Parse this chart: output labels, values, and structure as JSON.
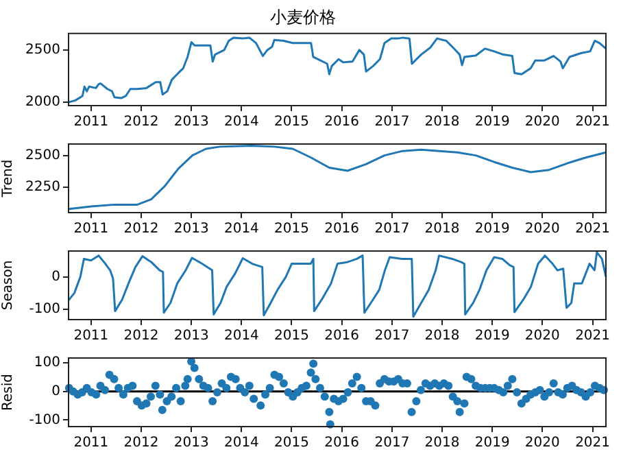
{
  "chart_data": [
    {
      "type": "line",
      "title": "小麦价格",
      "color": "#1f77b4",
      "grid": false,
      "legend": false,
      "xlim": [
        "2010-07-21",
        "2021-04-08"
      ],
      "xticks": [
        "2011",
        "2012",
        "2013",
        "2014",
        "2015",
        "2016",
        "2017",
        "2018",
        "2019",
        "2020",
        "2021"
      ],
      "ylim": [
        1968,
        2658
      ],
      "yticks": [
        2000,
        2500
      ],
      "x": [
        "2010-07-21",
        "2010-09-09",
        "2010-10-30",
        "2010-11-14",
        "2010-12-01",
        "2010-12-18",
        "2011-02-06",
        "2011-02-23",
        "2011-03-11",
        "2011-04-30",
        "2011-06-03",
        "2011-06-20",
        "2011-08-08",
        "2011-09-11",
        "2011-10-14",
        "2011-12-04",
        "2012-02-08",
        "2012-04-16",
        "2012-05-19",
        "2012-06-05",
        "2012-07-09",
        "2012-08-11",
        "2012-09-28",
        "2012-11-02",
        "2012-12-04",
        "2013-01-01",
        "2013-01-24",
        "2013-03-14",
        "2013-05-19",
        "2013-06-05",
        "2013-06-22",
        "2013-08-28",
        "2013-09-30",
        "2013-11-03",
        "2014-01-08",
        "2014-02-27",
        "2014-04-17",
        "2014-06-05",
        "2014-07-08",
        "2014-08-11",
        "2014-08-28",
        "2014-11-04",
        "2015-01-09",
        "2015-03-17",
        "2015-05-22",
        "2015-06-07",
        "2015-07-12",
        "2015-09-17",
        "2015-10-02",
        "2015-10-20",
        "2015-12-09",
        "2016-01-12",
        "2016-03-19",
        "2016-05-08",
        "2016-06-10",
        "2016-06-26",
        "2016-08-16",
        "2016-10-05",
        "2016-11-07",
        "2016-12-27",
        "2017-02-14",
        "2017-03-19",
        "2017-05-08",
        "2017-05-26",
        "2017-08-01",
        "2017-10-06",
        "2017-11-25",
        "2018-01-31",
        "2018-03-22",
        "2018-05-09",
        "2018-05-26",
        "2018-06-13",
        "2018-09-03",
        "2018-11-09",
        "2019-01-15",
        "2019-03-22",
        "2019-05-27",
        "2019-06-12",
        "2019-08-03",
        "2019-10-08",
        "2019-11-10",
        "2020-01-16",
        "2020-03-23",
        "2020-05-12",
        "2020-05-29",
        "2020-07-17",
        "2020-10-08",
        "2020-12-14",
        "2021-01-17",
        "2021-02-21",
        "2021-04-08"
      ],
      "values": [
        2000,
        2018,
        2060,
        2150,
        2105,
        2150,
        2136,
        2170,
        2180,
        2127,
        2105,
        2048,
        2040,
        2060,
        2127,
        2127,
        2136,
        2193,
        2193,
        2075,
        2105,
        2215,
        2280,
        2325,
        2434,
        2575,
        2544,
        2544,
        2544,
        2390,
        2456,
        2500,
        2588,
        2618,
        2610,
        2618,
        2566,
        2443,
        2500,
        2530,
        2596,
        2588,
        2566,
        2566,
        2566,
        2434,
        2412,
        2368,
        2268,
        2346,
        2412,
        2382,
        2390,
        2500,
        2456,
        2294,
        2346,
        2412,
        2566,
        2610,
        2610,
        2618,
        2610,
        2368,
        2456,
        2522,
        2610,
        2588,
        2522,
        2456,
        2355,
        2434,
        2447,
        2513,
        2487,
        2456,
        2443,
        2280,
        2268,
        2325,
        2400,
        2400,
        2443,
        2390,
        2325,
        2434,
        2470,
        2487,
        2588,
        2566,
        2513
      ]
    },
    {
      "type": "line",
      "ylabel": "Trend",
      "color": "#1f77b4",
      "grid": false,
      "legend": false,
      "xlim": [
        "2010-07-21",
        "2021-04-08"
      ],
      "xticks": [
        "2011",
        "2012",
        "2013",
        "2014",
        "2015",
        "2016",
        "2017",
        "2018",
        "2019",
        "2020",
        "2021"
      ],
      "ylim": [
        2048,
        2590
      ],
      "yticks": [
        2250,
        2500
      ],
      "x": [
        "2010-07-21",
        "2011-01-01",
        "2011-06-20",
        "2011-12-04",
        "2012-03-14",
        "2012-06-21",
        "2012-09-28",
        "2013-01-08",
        "2013-04-17",
        "2013-07-27",
        "2014-03-15",
        "2014-08-28",
        "2015-01-09",
        "2015-05-22",
        "2015-10-02",
        "2016-02-13",
        "2016-06-26",
        "2016-11-07",
        "2017-03-19",
        "2017-08-01",
        "2017-12-12",
        "2018-04-24",
        "2018-09-03",
        "2019-01-15",
        "2019-05-27",
        "2019-10-08",
        "2020-02-19",
        "2020-07-01",
        "2020-11-12",
        "2021-04-08"
      ],
      "values": [
        2077,
        2097,
        2111,
        2111,
        2153,
        2257,
        2396,
        2500,
        2552,
        2569,
        2576,
        2569,
        2552,
        2483,
        2403,
        2379,
        2431,
        2500,
        2535,
        2545,
        2535,
        2524,
        2500,
        2448,
        2403,
        2368,
        2386,
        2438,
        2483,
        2524
      ]
    },
    {
      "type": "line",
      "ylabel": "Season",
      "color": "#1f77b4",
      "grid": false,
      "legend": false,
      "xlim": [
        "2010-07-21",
        "2021-04-08"
      ],
      "xticks": [
        "2011",
        "2012",
        "2013",
        "2014",
        "2015",
        "2016",
        "2017",
        "2018",
        "2019",
        "2020",
        "2021"
      ],
      "ylim": [
        -131,
        79
      ],
      "yticks": [
        -100,
        0
      ],
      "x": [
        "2010-07-21",
        "2010-09-01",
        "2010-10-15",
        "2010-11-10",
        "2011-01-01",
        "2011-02-25",
        "2011-04-15",
        "2011-05-20",
        "2011-06-10",
        "2011-06-25",
        "2011-08-15",
        "2011-10-01",
        "2011-11-20",
        "2012-01-10",
        "2012-03-15",
        "2012-05-15",
        "2012-06-08",
        "2012-06-14",
        "2012-08-01",
        "2012-09-20",
        "2012-11-20",
        "2013-01-05",
        "2013-03-20",
        "2013-06-01",
        "2013-06-12",
        "2013-08-01",
        "2013-09-15",
        "2013-11-15",
        "2014-01-10",
        "2014-03-20",
        "2014-06-01",
        "2014-06-12",
        "2014-08-01",
        "2014-09-20",
        "2014-11-20",
        "2015-01-01",
        "2015-03-15",
        "2015-05-20",
        "2015-06-08",
        "2015-06-14",
        "2015-08-15",
        "2015-10-15",
        "2015-12-01",
        "2016-02-10",
        "2016-04-20",
        "2016-06-01",
        "2016-06-14",
        "2016-08-15",
        "2016-09-30",
        "2016-11-10",
        "2016-12-15",
        "2017-03-15",
        "2017-05-25",
        "2017-06-05",
        "2017-08-01",
        "2017-09-25",
        "2017-11-15",
        "2017-12-10",
        "2018-03-15",
        "2018-05-20",
        "2018-06-12",
        "2018-06-18",
        "2018-08-15",
        "2018-09-30",
        "2018-11-20",
        "2019-01-15",
        "2019-03-15",
        "2019-05-10",
        "2019-06-05",
        "2019-06-12",
        "2019-08-15",
        "2019-10-10",
        "2019-12-01",
        "2020-01-20",
        "2020-03-15",
        "2020-04-20",
        "2020-06-01",
        "2020-06-25",
        "2020-07-30",
        "2020-08-20",
        "2020-10-15",
        "2020-12-10",
        "2021-01-15",
        "2021-02-01",
        "2021-03-10",
        "2021-04-08"
      ],
      "values": [
        -72,
        -50,
        0,
        55,
        50,
        65,
        40,
        20,
        -5,
        -105,
        -70,
        -20,
        30,
        63,
        45,
        20,
        15,
        -110,
        -80,
        -20,
        20,
        58,
        40,
        20,
        -115,
        -80,
        -30,
        10,
        57,
        40,
        30,
        -118,
        -80,
        -40,
        0,
        40,
        40,
        40,
        55,
        -105,
        -65,
        -20,
        40,
        45,
        55,
        65,
        -110,
        -70,
        -40,
        20,
        60,
        55,
        55,
        -122,
        -80,
        -40,
        20,
        65,
        55,
        45,
        40,
        -115,
        -80,
        -40,
        20,
        60,
        55,
        35,
        30,
        -108,
        -70,
        -30,
        40,
        65,
        40,
        20,
        25,
        -95,
        -80,
        -20,
        -20,
        40,
        20,
        75,
        55,
        0
      ]
    },
    {
      "type": "scatter",
      "ylabel": "Resid",
      "color": "#1f77b4",
      "marker": "circle",
      "grid": false,
      "legend": false,
      "xlim": [
        "2010-07-21",
        "2021-04-08"
      ],
      "xticks": [
        "2011",
        "2012",
        "2013",
        "2014",
        "2015",
        "2016",
        "2017",
        "2018",
        "2019",
        "2020",
        "2021"
      ],
      "ylim": [
        -123,
        117
      ],
      "yticks": [
        -100,
        0,
        100
      ],
      "ref_lines": [
        {
          "axis": "y",
          "value": 0,
          "color": "#000000"
        }
      ],
      "x": [
        "2010-07-25",
        "2010-08-23",
        "2010-09-26",
        "2010-10-28",
        "2010-12-01",
        "2011-01-04",
        "2011-02-07",
        "2011-03-10",
        "2011-04-12",
        "2011-05-15",
        "2011-06-18",
        "2011-07-21",
        "2011-08-24",
        "2011-09-26",
        "2011-10-30",
        "2011-12-02",
        "2012-01-05",
        "2012-02-08",
        "2012-03-11",
        "2012-04-14",
        "2012-05-17",
        "2012-06-03",
        "2012-07-06",
        "2012-08-09",
        "2012-09-12",
        "2012-10-15",
        "2012-11-17",
        "2012-12-04",
        "2012-12-31",
        "2013-01-23",
        "2013-02-25",
        "2013-03-29",
        "2013-05-02",
        "2013-06-04",
        "2013-07-08",
        "2013-08-10",
        "2013-09-13",
        "2013-10-16",
        "2013-11-19",
        "2013-12-22",
        "2014-01-25",
        "2014-02-27",
        "2014-03-31",
        "2014-05-20",
        "2014-06-23",
        "2014-07-26",
        "2014-08-29",
        "2014-10-01",
        "2014-11-04",
        "2014-12-07",
        "2015-01-10",
        "2015-02-12",
        "2015-03-16",
        "2015-04-18",
        "2015-05-21",
        "2015-06-08",
        "2015-06-24",
        "2015-07-27",
        "2015-08-30",
        "2015-10-02",
        "2015-10-09",
        "2015-11-05",
        "2015-12-08",
        "2016-01-11",
        "2016-02-14",
        "2016-03-17",
        "2016-04-20",
        "2016-05-23",
        "2016-06-26",
        "2016-07-29",
        "2016-09-01",
        "2016-10-04",
        "2016-11-07",
        "2016-12-10",
        "2017-01-13",
        "2017-02-15",
        "2017-03-19",
        "2017-04-21",
        "2017-05-24",
        "2017-06-27",
        "2017-07-30",
        "2017-09-02",
        "2017-10-05",
        "2017-11-08",
        "2017-12-11",
        "2018-01-14",
        "2018-02-16",
        "2018-03-20",
        "2018-04-22",
        "2018-05-09",
        "2018-06-12",
        "2018-06-28",
        "2018-08-01",
        "2018-09-03",
        "2018-10-07",
        "2018-11-10",
        "2018-12-13",
        "2019-01-15",
        "2019-02-18",
        "2019-03-22",
        "2019-04-24",
        "2019-05-27",
        "2019-06-30",
        "2019-08-02",
        "2019-09-05",
        "2019-10-08",
        "2019-11-11",
        "2019-12-14",
        "2020-01-16",
        "2020-02-19",
        "2020-03-23",
        "2020-04-25",
        "2020-05-28",
        "2020-07-01",
        "2020-08-04",
        "2020-09-06",
        "2020-10-09",
        "2020-11-12",
        "2020-12-15",
        "2021-01-18",
        "2021-02-21",
        "2021-03-24"
      ],
      "values": [
        12,
        0,
        -11,
        -3,
        12,
        -3,
        -11,
        20,
        5,
        58,
        43,
        12,
        -11,
        12,
        20,
        -34,
        -49,
        -42,
        -18,
        20,
        -11,
        -65,
        -34,
        -18,
        12,
        -34,
        20,
        43,
        105,
        82,
        43,
        20,
        12,
        -34,
        -3,
        28,
        12,
        51,
        43,
        12,
        -3,
        20,
        -26,
        -49,
        -11,
        12,
        58,
        51,
        28,
        -3,
        -18,
        -3,
        12,
        20,
        66,
        97,
        43,
        12,
        -18,
        -72,
        -115,
        -26,
        -34,
        -26,
        -3,
        28,
        51,
        12,
        -34,
        -34,
        -49,
        28,
        43,
        35,
        35,
        43,
        28,
        28,
        -72,
        -34,
        5,
        28,
        20,
        28,
        20,
        28,
        20,
        -18,
        -34,
        -72,
        -42,
        51,
        43,
        20,
        12,
        12,
        12,
        12,
        5,
        -3,
        20,
        43,
        -3,
        -42,
        -26,
        -11,
        -3,
        5,
        -18,
        -3,
        28,
        -3,
        -11,
        12,
        20,
        5,
        -3,
        -18,
        -3,
        20,
        12,
        5
      ]
    }
  ]
}
